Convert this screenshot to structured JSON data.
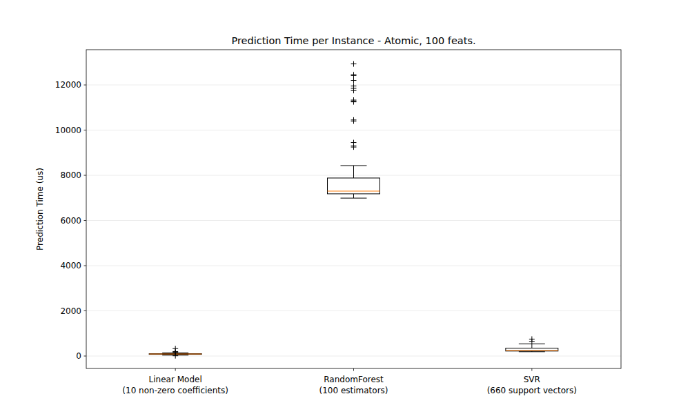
{
  "chart_data": {
    "type": "box",
    "title": "Prediction Time per Instance - Atomic, 100 feats.",
    "y_label": "Prediction Time (us)",
    "categories": [
      "Linear Model\n(10 non-zero coefficients)",
      "RandomForest\n(100 estimators)",
      "SVR\n(660 support vectors)"
    ],
    "boxes": [
      {
        "whislo": 40,
        "q1": 75,
        "median": 90,
        "q3": 105,
        "whishi": 140,
        "fliers": [
          10,
          160,
          200,
          330
        ]
      },
      {
        "whislo": 6990,
        "q1": 7180,
        "median": 7300,
        "q3": 7880,
        "whishi": 8430,
        "fliers": [
          9250,
          9300,
          9450,
          10400,
          10450,
          11250,
          11280,
          11330,
          11750,
          11850,
          11950,
          12200,
          12420,
          12450,
          12930
        ]
      },
      {
        "whislo": 190,
        "q1": 220,
        "median": 250,
        "q3": 350,
        "whishi": 540,
        "fliers": [
          650,
          750
        ]
      }
    ],
    "ylim": [
      -550,
      13560
    ],
    "yticks": [
      0,
      2000,
      4000,
      6000,
      8000,
      10000,
      12000
    ],
    "grid": true,
    "marker": "plus"
  }
}
